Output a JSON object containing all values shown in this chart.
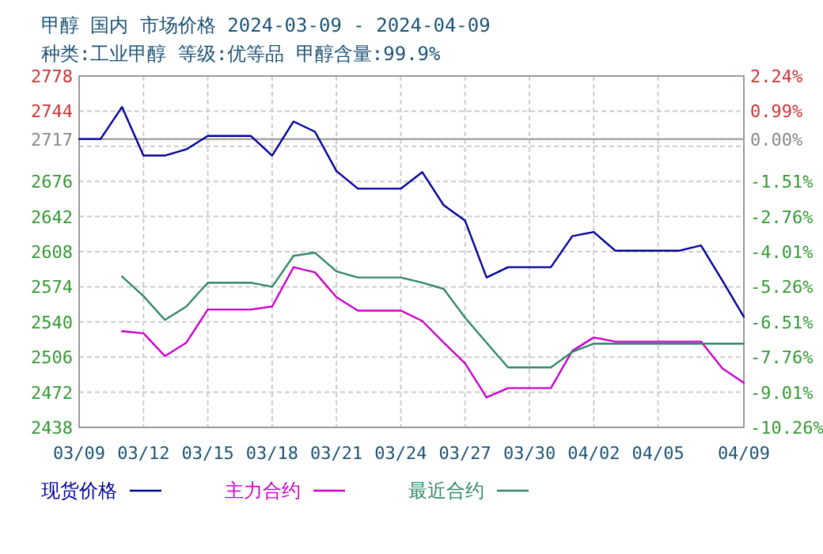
{
  "chart_data": {
    "type": "line",
    "title": "甲醇 国内 市场价格 2024-03-09 - 2024-04-09",
    "subtitle": "种类:工业甲醇 等级:优等品 甲醇含量:99.9%",
    "x": [
      "2024-03-09",
      "2024-03-10",
      "2024-03-11",
      "2024-03-12",
      "2024-03-13",
      "2024-03-14",
      "2024-03-15",
      "2024-03-16",
      "2024-03-17",
      "2024-03-18",
      "2024-03-19",
      "2024-03-20",
      "2024-03-21",
      "2024-03-22",
      "2024-03-23",
      "2024-03-24",
      "2024-03-25",
      "2024-03-26",
      "2024-03-27",
      "2024-03-28",
      "2024-03-29",
      "2024-03-30",
      "2024-03-31",
      "2024-04-01",
      "2024-04-02",
      "2024-04-03",
      "2024-04-04",
      "2024-04-05",
      "2024-04-06",
      "2024-04-07",
      "2024-04-08",
      "2024-04-09"
    ],
    "series": [
      {
        "name": "现货价格",
        "color": "#000099",
        "values": [
          2717,
          2717,
          2748,
          2701,
          2701,
          2707,
          2720,
          2720,
          2720,
          2701,
          2734,
          2724,
          2686,
          2669,
          2669,
          2669,
          2685,
          2653,
          2638,
          2583,
          2593,
          2593,
          2593,
          2623,
          2627,
          2609,
          2609,
          2609,
          2609,
          2614,
          2580,
          2545
        ]
      },
      {
        "name": "主力合约",
        "color": "#cc00cc",
        "values": [
          null,
          null,
          2531,
          2529,
          2507,
          2520,
          2552,
          2552,
          2552,
          2555,
          2593,
          2588,
          2564,
          2551,
          2551,
          2551,
          2541,
          2520,
          2500,
          2467,
          2476,
          2476,
          2476,
          2512,
          2525,
          2521,
          2521,
          2521,
          2521,
          2521,
          2495,
          2481
        ]
      },
      {
        "name": "最近合约",
        "color": "#338866",
        "values": [
          null,
          null,
          2584,
          2565,
          2542,
          2555,
          2578,
          2578,
          2578,
          2574,
          2604,
          2607,
          2589,
          2583,
          2583,
          2583,
          2578,
          2572,
          2544,
          2520,
          2496,
          2496,
          2496,
          2511,
          2519,
          2519,
          2519,
          2519,
          2519,
          2519,
          2519,
          2519
        ]
      }
    ],
    "xlim": [
      "2024-03-09",
      "2024-04-09"
    ],
    "xticks": [
      {
        "value": "2024-03-09",
        "label": "03/09"
      },
      {
        "value": "2024-03-12",
        "label": "03/12"
      },
      {
        "value": "2024-03-15",
        "label": "03/15"
      },
      {
        "value": "2024-03-18",
        "label": "03/18"
      },
      {
        "value": "2024-03-21",
        "label": "03/21"
      },
      {
        "value": "2024-03-24",
        "label": "03/24"
      },
      {
        "value": "2024-03-27",
        "label": "03/27"
      },
      {
        "value": "2024-03-30",
        "label": "03/30"
      },
      {
        "value": "2024-04-02",
        "label": "04/02"
      },
      {
        "value": "2024-04-05",
        "label": "04/05"
      },
      {
        "value": "2024-04-09",
        "label": "04/09"
      }
    ],
    "ylim": [
      2438,
      2778
    ],
    "yticks": [
      2438,
      2472,
      2506,
      2540,
      2574,
      2608,
      2642,
      2676,
      {
        "value": 2710,
        "label": null
      },
      2717,
      2744,
      2778
    ],
    "y2lim": [
      -10.26,
      2.24
    ],
    "y2ticks": [
      {
        "value": -10.26,
        "label": "-10.26%"
      },
      {
        "value": -9.01,
        "label": "-9.01%"
      },
      {
        "value": -7.76,
        "label": "-7.76%"
      },
      {
        "value": -6.51,
        "label": "-6.51%"
      },
      {
        "value": -5.26,
        "label": "-5.26%"
      },
      {
        "value": -4.01,
        "label": "-4.01%"
      },
      {
        "value": -2.76,
        "label": "-2.76%"
      },
      {
        "value": -1.51,
        "label": "-1.51%"
      },
      {
        "value": -0.26,
        "label": null
      },
      {
        "value": 0,
        "label": "0.00%"
      },
      {
        "value": 0.99,
        "label": "0.99%"
      },
      {
        "value": 2.24,
        "label": "2.24%"
      }
    ],
    "ref_lines": [
      {
        "axis": "y",
        "value": 2717,
        "color": "#999999"
      }
    ],
    "grid": true,
    "legend": "bottom",
    "marker": "none",
    "line_style": "solid"
  }
}
